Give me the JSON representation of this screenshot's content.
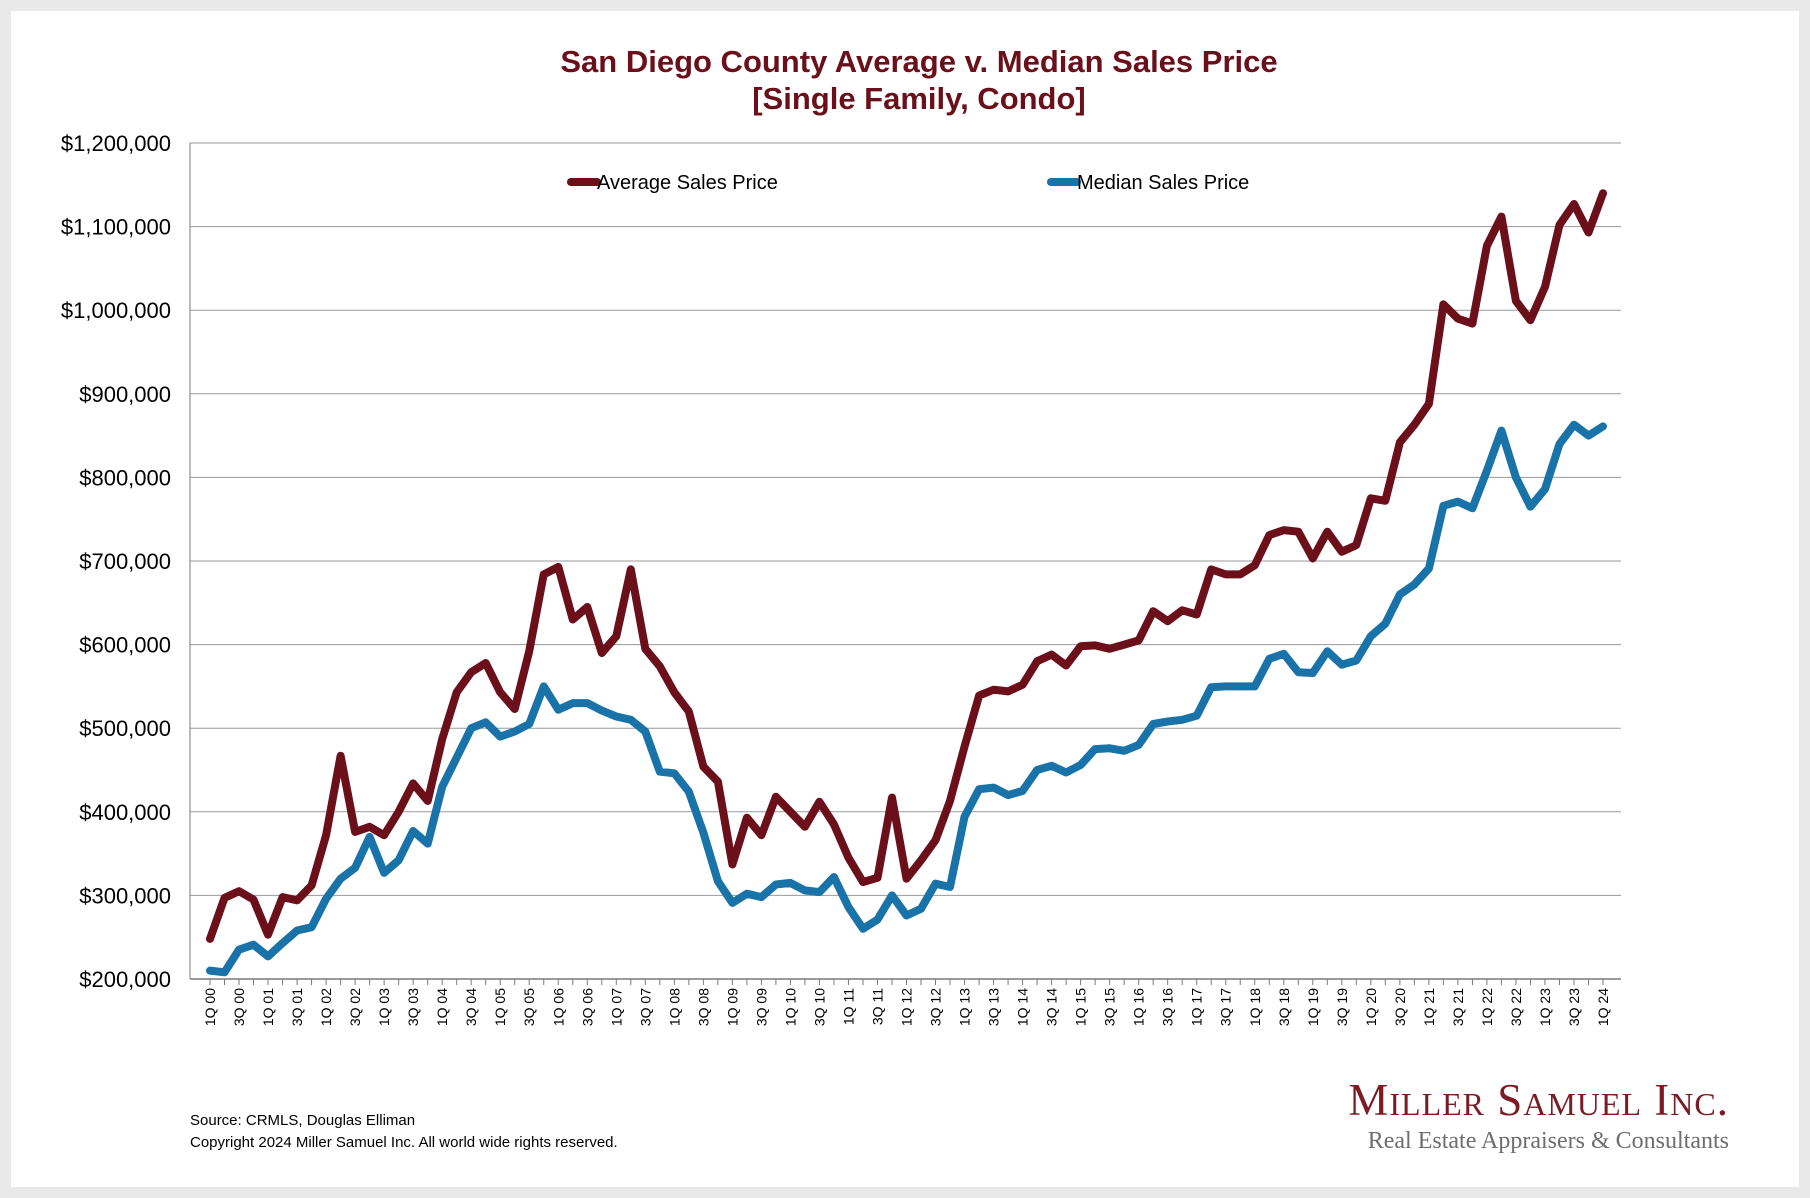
{
  "footer": {
    "source": "Source: CRMLS, Douglas Elliman",
    "copyright": "Copyright 2024 Miller Samuel Inc.  All world wide rights reserved."
  },
  "brand": {
    "name": "Miller Samuel Inc.",
    "tagline": "Real Estate Appraisers & Consultants"
  },
  "chart_data": {
    "type": "line",
    "title": "San Diego County Average v. Median Sales Price",
    "subtitle": "[Single Family, Condo]",
    "xlabel": "",
    "ylabel": "",
    "ylim": [
      200000,
      1200000
    ],
    "yticks": [
      200000,
      300000,
      400000,
      500000,
      600000,
      700000,
      800000,
      900000,
      1000000,
      1100000,
      1200000
    ],
    "ytick_labels": [
      "$200,000",
      "$300,000",
      "$400,000",
      "$500,000",
      "$600,000",
      "$700,000",
      "$800,000",
      "$900,000",
      "$1,000,000",
      "$1,100,000",
      "$1,200,000"
    ],
    "grid": true,
    "legend_position": "top",
    "xtick_labels": [
      "1Q 00",
      "3Q 00",
      "1Q 01",
      "3Q 01",
      "1Q 02",
      "3Q 02",
      "1Q 03",
      "3Q 03",
      "1Q 04",
      "3Q 04",
      "1Q 05",
      "3Q 05",
      "1Q 06",
      "3Q 06",
      "1Q 07",
      "3Q 07",
      "1Q 08",
      "3Q 08",
      "1Q 09",
      "3Q 09",
      "1Q 10",
      "3Q 10",
      "1Q 11",
      "3Q 11",
      "1Q 12",
      "3Q 12",
      "1Q 13",
      "3Q 13",
      "1Q 14",
      "3Q 14",
      "1Q 15",
      "3Q 15",
      "1Q 16",
      "3Q 16",
      "1Q 17",
      "3Q 17",
      "1Q 18",
      "3Q 18",
      "1Q 19",
      "3Q 19",
      "1Q 20",
      "3Q 20",
      "1Q 21",
      "3Q 21",
      "1Q 22",
      "3Q 22",
      "1Q 23",
      "3Q 23",
      "1Q 24"
    ],
    "x": [
      "1Q 00",
      "2Q 00",
      "3Q 00",
      "4Q 00",
      "1Q 01",
      "2Q 01",
      "3Q 01",
      "4Q 01",
      "1Q 02",
      "2Q 02",
      "3Q 02",
      "4Q 02",
      "1Q 03",
      "2Q 03",
      "3Q 03",
      "4Q 03",
      "1Q 04",
      "2Q 04",
      "3Q 04",
      "4Q 04",
      "1Q 05",
      "2Q 05",
      "3Q 05",
      "4Q 05",
      "1Q 06",
      "2Q 06",
      "3Q 06",
      "4Q 06",
      "1Q 07",
      "2Q 07",
      "3Q 07",
      "4Q 07",
      "1Q 08",
      "2Q 08",
      "3Q 08",
      "4Q 08",
      "1Q 09",
      "2Q 09",
      "3Q 09",
      "4Q 09",
      "1Q 10",
      "2Q 10",
      "3Q 10",
      "4Q 10",
      "1Q 11",
      "2Q 11",
      "3Q 11",
      "4Q 11",
      "1Q 12",
      "2Q 12",
      "3Q 12",
      "4Q 12",
      "1Q 13",
      "2Q 13",
      "3Q 13",
      "4Q 13",
      "1Q 14",
      "2Q 14",
      "3Q 14",
      "4Q 14",
      "1Q 15",
      "2Q 15",
      "3Q 15",
      "4Q 15",
      "1Q 16",
      "2Q 16",
      "3Q 16",
      "4Q 16",
      "1Q 17",
      "2Q 17",
      "3Q 17",
      "4Q 17",
      "1Q 18",
      "2Q 18",
      "3Q 18",
      "4Q 18",
      "1Q 19",
      "2Q 19",
      "3Q 19",
      "4Q 19",
      "1Q 20",
      "2Q 20",
      "3Q 20",
      "4Q 20",
      "1Q 21",
      "2Q 21",
      "3Q 21",
      "4Q 21",
      "1Q 22",
      "2Q 22",
      "3Q 22",
      "4Q 22",
      "1Q 23",
      "2Q 23",
      "3Q 23",
      "4Q 23",
      "1Q 24"
    ],
    "series": [
      {
        "name": "Average Sales Price",
        "color": "#6b0f1a",
        "values": [
          248000,
          297000,
          305000,
          295000,
          253000,
          298000,
          294000,
          312000,
          372000,
          467000,
          376000,
          382000,
          372000,
          400000,
          434000,
          413000,
          487000,
          543000,
          567000,
          578000,
          543000,
          523000,
          592000,
          684000,
          693000,
          630000,
          645000,
          590000,
          610000,
          690000,
          595000,
          574000,
          543000,
          520000,
          454000,
          436000,
          337000,
          393000,
          372000,
          418000,
          400000,
          382000,
          412000,
          385000,
          345000,
          316000,
          321000,
          417000,
          320000,
          342000,
          366000,
          413000,
          478000,
          539000,
          546000,
          544000,
          552000,
          580000,
          588000,
          575000,
          598000,
          599000,
          595000,
          600000,
          605000,
          640000,
          628000,
          641000,
          636000,
          690000,
          684000,
          684000,
          695000,
          731000,
          737000,
          735000,
          703000,
          735000,
          711000,
          719000,
          775000,
          772000,
          842000,
          863000,
          888000,
          1007000,
          990000,
          984000,
          1077000,
          1112000,
          1011000,
          988000,
          1028000,
          1102000,
          1127000,
          1093000,
          1140000
        ]
      },
      {
        "name": "Median Sales Price",
        "color": "#1a73a8",
        "values": [
          210000,
          208000,
          235000,
          241000,
          227000,
          243000,
          258000,
          262000,
          296000,
          320000,
          333000,
          370000,
          327000,
          342000,
          377000,
          362000,
          430000,
          465000,
          500000,
          507000,
          490000,
          496000,
          505000,
          550000,
          522000,
          530000,
          530000,
          521000,
          514000,
          510000,
          496000,
          448000,
          446000,
          424000,
          375000,
          317000,
          291000,
          302000,
          298000,
          313000,
          315000,
          306000,
          304000,
          322000,
          286000,
          260000,
          271000,
          300000,
          276000,
          284000,
          314000,
          310000,
          394000,
          427000,
          429000,
          420000,
          425000,
          450000,
          455000,
          447000,
          456000,
          475000,
          476000,
          473000,
          480000,
          505000,
          508000,
          510000,
          515000,
          549000,
          550000,
          550000,
          550000,
          583000,
          589000,
          567000,
          566000,
          592000,
          576000,
          581000,
          610000,
          625000,
          660000,
          672000,
          691000,
          766000,
          771000,
          763000,
          808000,
          856000,
          800000,
          765000,
          786000,
          840000,
          863000,
          850000,
          861000
        ]
      }
    ]
  }
}
